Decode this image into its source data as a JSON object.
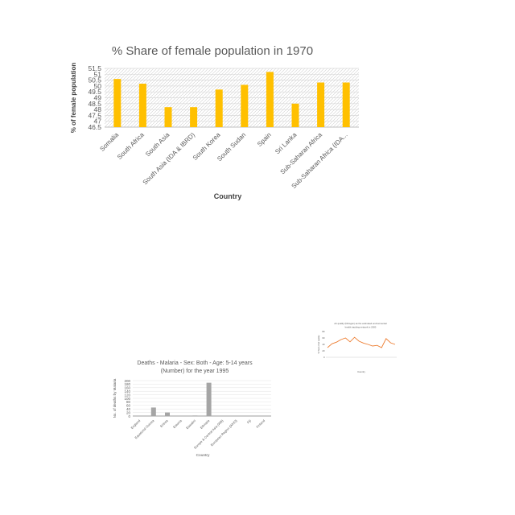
{
  "chart_data": [
    {
      "type": "bar",
      "title": "% Share of female population in 1970",
      "xlabel": "Country",
      "ylabel": "% of female population",
      "categories": [
        "Somalia",
        "South Africa",
        "South Asia",
        "South Asia (IDA & IBRD)",
        "South Korea",
        "South Sudan",
        "Spain",
        "Sri Lanka",
        "Sub-Saharan Africa",
        "Sub-Saharan Africa (IDA..."
      ],
      "values": [
        50.6,
        50.2,
        48.2,
        48.2,
        49.7,
        50.1,
        51.2,
        48.5,
        50.3,
        50.3
      ],
      "yticks": [
        "46.5",
        "47",
        "47.5",
        "48",
        "48.5",
        "49",
        "49.5",
        "50",
        "50.5",
        "51",
        "51.5"
      ],
      "ylim": [
        46.5,
        51.5
      ],
      "bar_color": "#FFC000",
      "grid": "hatched"
    },
    {
      "type": "bar",
      "title_lines": [
        "Deaths - Malaria - Sex: Both - Age: 5-14 years",
        "(Number) for the year 1995"
      ],
      "xlabel": "Country",
      "ylabel": "No. of deaths by Malaria",
      "categories": [
        "England",
        "Equatorial Guinea",
        "Eritrea",
        "Estonia",
        "Eswatini",
        "Ethiopia",
        "Europe & Central Asia (WB)",
        "European Region (WHO)",
        "Fiji",
        "Finland"
      ],
      "values": [
        0,
        48,
        20,
        0,
        3,
        188,
        0,
        0,
        0,
        0
      ],
      "yticks": [
        "0",
        "20",
        "40",
        "60",
        "80",
        "100",
        "120",
        "140",
        "160",
        "180",
        "200"
      ],
      "ylim": [
        0,
        200
      ],
      "bar_color": "#A5A5A5"
    },
    {
      "type": "line",
      "title_lines": [
        "Air quality (Nitrogen) as the estimated environmental",
        "health tracking network in 2000"
      ],
      "xlabel": "Country",
      "ylabel": "% Year of air quality",
      "yticks": [
        "0",
        "20",
        "40",
        "60",
        "80"
      ],
      "ylim": [
        0,
        80
      ],
      "values": [
        30,
        42,
        47,
        55,
        60,
        48,
        62,
        50,
        44,
        40,
        35,
        37,
        30,
        58,
        45,
        40
      ],
      "line_color": "#ED7D31"
    }
  ]
}
